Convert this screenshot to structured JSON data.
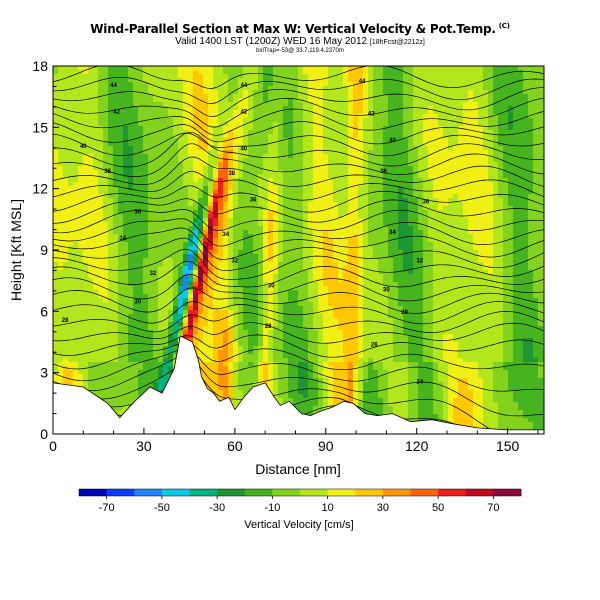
{
  "title": {
    "main": "Wind-Parallel Section at Max W: Vertical Velocity & Pot.Temp.",
    "copyright": "(C)",
    "valid": "Valid 1400 LST (1200Z) WED 16 May 2012",
    "valid_tag": "[18hFcst@2212z]",
    "tiny": "bxlTrap=-53@ 33.7,119.4,2370m"
  },
  "chart_data": {
    "type": "heatmap",
    "xlabel": "Distance [nm]",
    "ylabel": "Height [Kft MSL]",
    "xlim": [
      0,
      162
    ],
    "ylim": [
      0,
      18
    ],
    "xticks": [
      0,
      30,
      60,
      90,
      120,
      150
    ],
    "yticks": [
      0,
      3,
      6,
      9,
      12,
      15,
      18
    ],
    "colorbar": {
      "label": "Vertical Velocity [cm/s]",
      "tick_labels": [
        -70,
        -50,
        -30,
        -10,
        10,
        30,
        50,
        70
      ],
      "levels": [
        -80,
        -70,
        -60,
        -50,
        -40,
        -30,
        -20,
        -10,
        0,
        10,
        20,
        30,
        40,
        50,
        60,
        70,
        80
      ],
      "colors": [
        "#0000b4",
        "#0a3cff",
        "#1e82ff",
        "#10c8e6",
        "#00b482",
        "#1e9632",
        "#46b41e",
        "#82d21e",
        "#b4e61e",
        "#f0f014",
        "#ffc800",
        "#ff9600",
        "#ff6400",
        "#f01e1e",
        "#be0a1e",
        "#8c0a3c"
      ]
    },
    "theta_contour_labels": [
      {
        "x": 20,
        "y": 17.1,
        "label": "44"
      },
      {
        "x": 63,
        "y": 17.1,
        "label": "44"
      },
      {
        "x": 102,
        "y": 17.3,
        "label": "44"
      },
      {
        "x": 21,
        "y": 15.8,
        "label": "42"
      },
      {
        "x": 63,
        "y": 15.8,
        "label": "42"
      },
      {
        "x": 105,
        "y": 15.7,
        "label": "42"
      },
      {
        "x": 10,
        "y": 14.1,
        "label": "40"
      },
      {
        "x": 63,
        "y": 14.0,
        "label": "40"
      },
      {
        "x": 112,
        "y": 14.4,
        "label": "40"
      },
      {
        "x": 18,
        "y": 12.9,
        "label": "38"
      },
      {
        "x": 59,
        "y": 12.8,
        "label": "38"
      },
      {
        "x": 109,
        "y": 12.9,
        "label": "38"
      },
      {
        "x": 28,
        "y": 10.9,
        "label": "36"
      },
      {
        "x": 66,
        "y": 11.5,
        "label": "36"
      },
      {
        "x": 123,
        "y": 11.4,
        "label": "36"
      },
      {
        "x": 23,
        "y": 9.6,
        "label": "34"
      },
      {
        "x": 57,
        "y": 9.8,
        "label": "34"
      },
      {
        "x": 112,
        "y": 9.9,
        "label": "34"
      },
      {
        "x": 33,
        "y": 7.9,
        "label": "32"
      },
      {
        "x": 60,
        "y": 8.5,
        "label": "32"
      },
      {
        "x": 121,
        "y": 8.5,
        "label": "32"
      },
      {
        "x": 28,
        "y": 6.5,
        "label": "30"
      },
      {
        "x": 72,
        "y": 7.3,
        "label": "30"
      },
      {
        "x": 110,
        "y": 7.1,
        "label": "30"
      },
      {
        "x": 4,
        "y": 5.6,
        "label": "28"
      },
      {
        "x": 71,
        "y": 5.3,
        "label": "28"
      },
      {
        "x": 116,
        "y": 6.0,
        "label": "28"
      },
      {
        "x": 106,
        "y": 4.4,
        "label": "26"
      },
      {
        "x": 121,
        "y": 2.6,
        "label": "24"
      }
    ],
    "terrain_kft": [
      [
        0,
        2.5
      ],
      [
        10,
        2.3
      ],
      [
        18,
        1.5
      ],
      [
        22,
        0.8
      ],
      [
        27,
        1.6
      ],
      [
        32,
        2.3
      ],
      [
        36,
        2.0
      ],
      [
        40,
        3.2
      ],
      [
        42,
        4.8
      ],
      [
        46,
        4.5
      ],
      [
        48,
        3.6
      ],
      [
        49,
        2.8
      ],
      [
        51,
        2.2
      ],
      [
        53,
        2.0
      ],
      [
        55,
        1.6
      ],
      [
        58,
        1.8
      ],
      [
        60,
        1.2
      ],
      [
        63,
        1.8
      ],
      [
        66,
        2.3
      ],
      [
        70,
        2.5
      ],
      [
        73,
        1.8
      ],
      [
        75,
        1.4
      ],
      [
        78,
        1.6
      ],
      [
        82,
        1.0
      ],
      [
        85,
        0.9
      ],
      [
        88,
        1.1
      ],
      [
        92,
        1.3
      ],
      [
        96,
        1.6
      ],
      [
        99,
        1.5
      ],
      [
        103,
        1.0
      ],
      [
        107,
        0.9
      ],
      [
        112,
        1.0
      ],
      [
        118,
        0.6
      ],
      [
        125,
        0.7
      ],
      [
        132,
        0.5
      ],
      [
        140,
        0.3
      ],
      [
        150,
        0.2
      ],
      [
        162,
        0.2
      ]
    ]
  }
}
